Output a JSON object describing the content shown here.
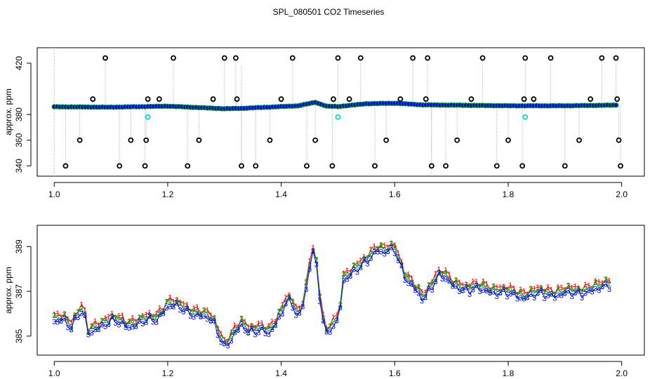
{
  "page": {
    "title": "SPL_080501  CO2 Timeseries"
  },
  "colors": {
    "axis": "#000000",
    "series1": "#ff0000",
    "series2": "#00a000",
    "series3": "#0000ff",
    "flag": "#00dddd",
    "connector": "#aaaaaa",
    "outlier": "#000000"
  },
  "chart_data": [
    {
      "type": "scatter",
      "title": "",
      "xlabel": "",
      "ylabel": "approx. ppm",
      "xlim": [
        0.97,
        2.04
      ],
      "ylim": [
        332,
        432
      ],
      "x_ticks": [
        1.0,
        1.2,
        1.4,
        1.6,
        1.8,
        2.0
      ],
      "x_tick_labels": [
        "1.0",
        "1.2",
        "1.4",
        "1.6",
        "1.8",
        "2.0"
      ],
      "y_ticks": [
        340,
        360,
        380,
        420
      ],
      "y_tick_labels": [
        "340",
        "360",
        "380",
        "420"
      ],
      "baseline_anchors": {
        "x": [
          1.0,
          1.1,
          1.2,
          1.3,
          1.33,
          1.4,
          1.43,
          1.46,
          1.48,
          1.5,
          1.55,
          1.6,
          1.65,
          1.7,
          1.8,
          1.9,
          1.99
        ],
        "y": [
          386,
          385.7,
          386.5,
          384.5,
          384.8,
          386.2,
          386.8,
          389.5,
          386.5,
          386.2,
          388.4,
          388.8,
          387.5,
          387.3,
          386.8,
          386.8,
          387.3
        ]
      },
      "baseline_sample_interval": 0.005,
      "outliers": {
        "x": [
          1.02,
          1.045,
          1.068,
          1.09,
          1.115,
          1.135,
          1.16,
          1.162,
          1.165,
          1.185,
          1.21,
          1.235,
          1.255,
          1.28,
          1.3,
          1.32,
          1.322,
          1.33,
          1.355,
          1.38,
          1.4,
          1.42,
          1.445,
          1.46,
          1.49,
          1.492,
          1.5,
          1.52,
          1.54,
          1.565,
          1.585,
          1.61,
          1.632,
          1.655,
          1.658,
          1.665,
          1.69,
          1.71,
          1.735,
          1.755,
          1.78,
          1.8,
          1.825,
          1.828,
          1.83,
          1.845,
          1.875,
          1.9,
          1.925,
          1.945,
          1.965,
          1.99,
          1.992,
          1.995,
          1.998
        ],
        "y": [
          340,
          360,
          392,
          424,
          340,
          360,
          340,
          360,
          392,
          392,
          424,
          340,
          360,
          392,
          424,
          424,
          392,
          340,
          340,
          360,
          392,
          424,
          340,
          360,
          340,
          392,
          424,
          392,
          424,
          340,
          360,
          392,
          424,
          392,
          424,
          340,
          340,
          360,
          392,
          424,
          340,
          360,
          340,
          392,
          424,
          392,
          424,
          340,
          360,
          392,
          424,
          424,
          392,
          360,
          340
        ]
      },
      "flagged": {
        "x": [
          1.165,
          1.5,
          1.83
        ],
        "y": [
          378,
          378,
          378
        ]
      }
    },
    {
      "type": "line",
      "title": "",
      "xlabel": "",
      "ylabel": "approx. ppm",
      "xlim": [
        0.97,
        2.04
      ],
      "ylim": [
        384.15,
        389.95
      ],
      "x_ticks": [
        1.0,
        1.2,
        1.4,
        1.6,
        1.8,
        2.0
      ],
      "x_tick_labels": [
        "1.0",
        "1.2",
        "1.4",
        "1.6",
        "1.8",
        "2.0"
      ],
      "y_ticks": [
        385,
        387,
        389
      ],
      "y_tick_labels": [
        "385",
        "387",
        "389"
      ],
      "series": [
        {
          "name": "1",
          "marker": "1",
          "color": "red",
          "offset": 0.12
        },
        {
          "name": "2",
          "marker": "2",
          "color": "green",
          "offset": 0.0
        },
        {
          "name": "3",
          "marker": "3",
          "color": "blue",
          "offset": -0.15
        }
      ],
      "anchors": {
        "x": [
          1.0,
          1.01,
          1.015,
          1.02,
          1.03,
          1.04,
          1.05,
          1.06,
          1.07,
          1.08,
          1.1,
          1.13,
          1.15,
          1.18,
          1.2,
          1.22,
          1.25,
          1.28,
          1.3,
          1.31,
          1.33,
          1.34,
          1.36,
          1.38,
          1.4,
          1.41,
          1.42,
          1.43,
          1.44,
          1.45,
          1.455,
          1.46,
          1.47,
          1.48,
          1.49,
          1.5,
          1.51,
          1.52,
          1.54,
          1.56,
          1.57,
          1.58,
          1.6,
          1.62,
          1.65,
          1.66,
          1.67,
          1.68,
          1.7,
          1.73,
          1.76,
          1.8,
          1.83,
          1.86,
          1.9,
          1.93,
          1.96,
          1.98
        ],
        "y": [
          385.8,
          385.6,
          386.2,
          385.7,
          385.6,
          386,
          386.3,
          385.2,
          385.4,
          385.6,
          385.8,
          385.6,
          385.7,
          385.9,
          386.5,
          386.4,
          386.1,
          385.8,
          384.7,
          384.9,
          385.6,
          385.4,
          385.4,
          385.2,
          386.2,
          386.8,
          386.5,
          385.8,
          386.7,
          388.2,
          389.1,
          388.8,
          386.3,
          385.1,
          385.6,
          385.8,
          387.7,
          387.8,
          388.2,
          388.8,
          389,
          388.8,
          389,
          387.7,
          386.7,
          387.2,
          387.6,
          387.9,
          387.4,
          387.2,
          387.2,
          387.0,
          386.9,
          387.0,
          387.0,
          387.1,
          387.2,
          387.5
        ]
      },
      "sample_interval": 0.006
    }
  ]
}
